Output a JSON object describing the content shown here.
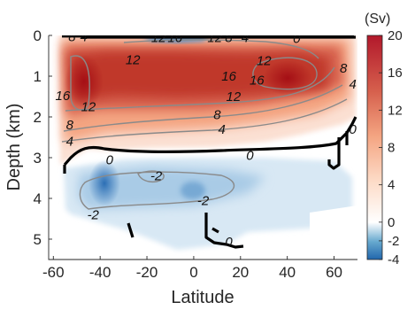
{
  "chart_data": {
    "type": "heatmap",
    "title": "",
    "xlabel": "Latitude",
    "ylabel": "Depth (km)",
    "xlim": [
      -62,
      70
    ],
    "ylim": [
      5.5,
      0
    ],
    "x_ticks": [
      -60,
      -40,
      -20,
      0,
      20,
      40,
      60
    ],
    "y_ticks": [
      0,
      1,
      2,
      3,
      4,
      5
    ],
    "colorbar": {
      "unit_label": "(Sv)",
      "range": [
        -4,
        20
      ],
      "ticks": [
        -4,
        -2,
        0,
        4,
        8,
        12,
        16,
        20
      ],
      "colormap": "diverging blue-white-red",
      "colors": {
        "negative": "#2166ac",
        "zero": "#ffffff",
        "positive": "#b2182b"
      }
    },
    "upper_cell": {
      "sign": "positive",
      "lat_range": [
        -52,
        66
      ],
      "depth_range": [
        0.1,
        2.9
      ],
      "max_value": 20,
      "core_centers": [
        {
          "lat": -46,
          "depth": 1.0,
          "value": 18
        },
        {
          "lat": 37,
          "depth": 0.9,
          "value": 18
        }
      ]
    },
    "lower_cell": {
      "sign": "negative",
      "lat_range": [
        -50,
        62
      ],
      "depth_range": [
        3.0,
        5.3
      ],
      "min_value": -4,
      "core_center": {
        "lat": -38,
        "depth": 3.7,
        "value": -4
      }
    },
    "contour_labels": [
      {
        "text": "8",
        "lat": -52,
        "depth": 0.03
      },
      {
        "text": "4",
        "lat": -47,
        "depth": 0.03
      },
      {
        "text": "12",
        "lat": -15,
        "depth": 0.05
      },
      {
        "text": "16",
        "lat": -8,
        "depth": 0.05
      },
      {
        "text": "12",
        "lat": 9,
        "depth": 0.05
      },
      {
        "text": "8",
        "lat": 15,
        "depth": 0.05
      },
      {
        "text": "4",
        "lat": 22,
        "depth": 0.05
      },
      {
        "text": "0",
        "lat": 44,
        "depth": 0.08
      },
      {
        "text": "12",
        "lat": -26,
        "depth": 0.6
      },
      {
        "text": "16",
        "lat": 15,
        "depth": 1.0
      },
      {
        "text": "12",
        "lat": 30,
        "depth": 0.62
      },
      {
        "text": "16",
        "lat": 27,
        "depth": 1.1
      },
      {
        "text": "8",
        "lat": 64,
        "depth": 0.8
      },
      {
        "text": "12",
        "lat": 17,
        "depth": 1.5
      },
      {
        "text": "4",
        "lat": 68,
        "depth": 1.2
      },
      {
        "text": "16",
        "lat": -56,
        "depth": 1.48
      },
      {
        "text": "12",
        "lat": -45,
        "depth": 1.75
      },
      {
        "text": "8",
        "lat": 10,
        "depth": 1.95
      },
      {
        "text": "8",
        "lat": -53,
        "depth": 2.2
      },
      {
        "text": "4",
        "lat": 12,
        "depth": 2.3
      },
      {
        "text": "4",
        "lat": -53,
        "depth": 2.6
      },
      {
        "text": "0",
        "lat": -36,
        "depth": 3.05
      },
      {
        "text": "0",
        "lat": 24,
        "depth": 2.95
      },
      {
        "text": "0",
        "lat": 68,
        "depth": 2.3
      },
      {
        "text": "-2",
        "lat": -16,
        "depth": 3.45
      },
      {
        "text": "-2",
        "lat": 4,
        "depth": 4.05
      },
      {
        "text": "-2",
        "lat": -43,
        "depth": 4.4
      },
      {
        "text": "0",
        "lat": 15,
        "depth": 5.07
      }
    ]
  }
}
